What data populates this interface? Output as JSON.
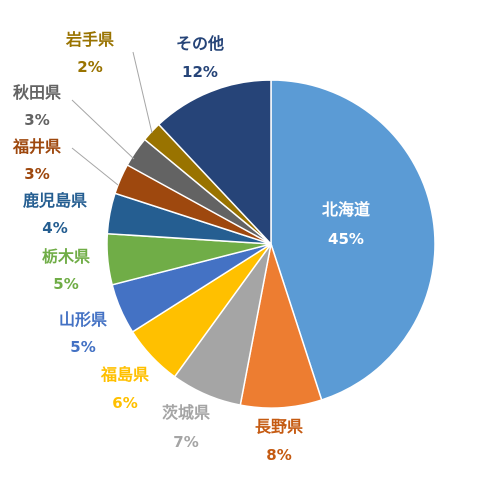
{
  "chart_data": {
    "type": "pie",
    "title": "",
    "start_angle_deg": 0,
    "direction": "clockwise",
    "slices": [
      {
        "label": "北海道",
        "value": 45,
        "value_label": "45%",
        "color": "#5b9bd5",
        "label_color": "#ffffff"
      },
      {
        "label": "長野県",
        "value": 8,
        "value_label": "8%",
        "color": "#ed7d31",
        "label_color": "#c55a11"
      },
      {
        "label": "茨城県",
        "value": 7,
        "value_label": "7%",
        "color": "#a5a5a5",
        "label_color": "#a5a5a5"
      },
      {
        "label": "福島県",
        "value": 6,
        "value_label": "6%",
        "color": "#ffc000",
        "label_color": "#ffc000"
      },
      {
        "label": "山形県",
        "value": 5,
        "value_label": "5%",
        "color": "#4472c4",
        "label_color": "#4472c4"
      },
      {
        "label": "栃木県",
        "value": 5,
        "value_label": "5%",
        "color": "#70ad47",
        "label_color": "#70ad47"
      },
      {
        "label": "鹿児島県",
        "value": 4,
        "value_label": "4%",
        "color": "#255e91",
        "label_color": "#255e91"
      },
      {
        "label": "福井県",
        "value": 3,
        "value_label": "3%",
        "color": "#9e480e",
        "label_color": "#9e480e"
      },
      {
        "label": "秋田県",
        "value": 3,
        "value_label": "3%",
        "color": "#636363",
        "label_color": "#636363"
      },
      {
        "label": "岩手県",
        "value": 2,
        "value_label": "2%",
        "color": "#997300",
        "label_color": "#997300"
      },
      {
        "label": "その他",
        "value": 12,
        "value_label": "12%",
        "color": "#264478",
        "label_color": "#264478"
      }
    ]
  }
}
